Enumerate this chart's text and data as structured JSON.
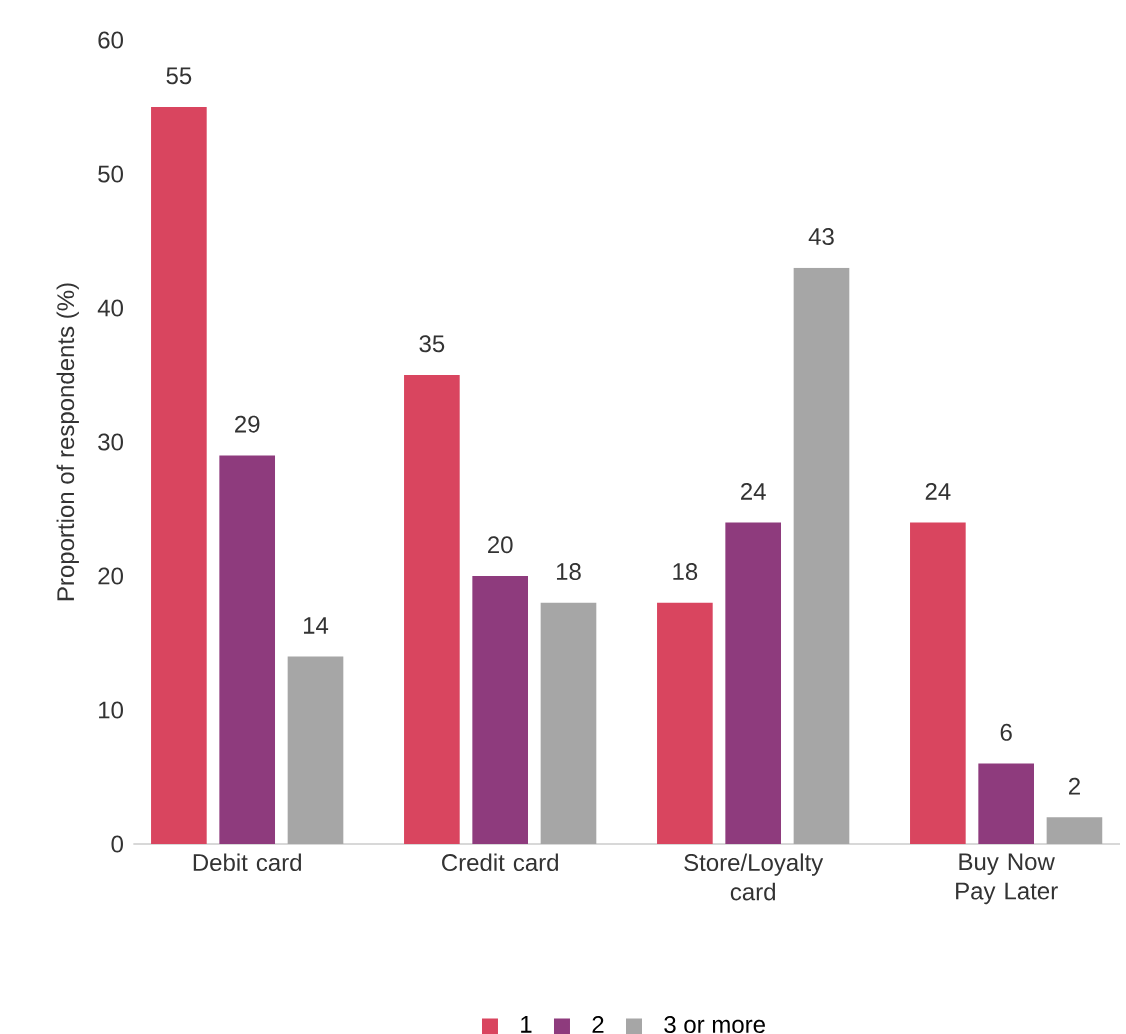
{
  "chart_data": {
    "type": "bar",
    "ylabel": "Proportion of respondents (%)",
    "categories": [
      "Debit card",
      "Credit card",
      "Store/Loyalty card",
      "Buy Now Pay Later"
    ],
    "series": [
      {
        "name": "1",
        "color": "#d9455f",
        "values": [
          55,
          35,
          18,
          24
        ]
      },
      {
        "name": "2",
        "color": "#8e3b7d",
        "values": [
          29,
          20,
          24,
          6
        ]
      },
      {
        "name": "3 or more",
        "color": "#a6a6a6",
        "values": [
          14,
          18,
          43,
          2
        ]
      }
    ],
    "ylim": [
      0,
      60
    ],
    "yticks": [
      0,
      10,
      20,
      30,
      40,
      50,
      60
    ],
    "data_labels": true,
    "legend": "bottom",
    "grid": false
  }
}
